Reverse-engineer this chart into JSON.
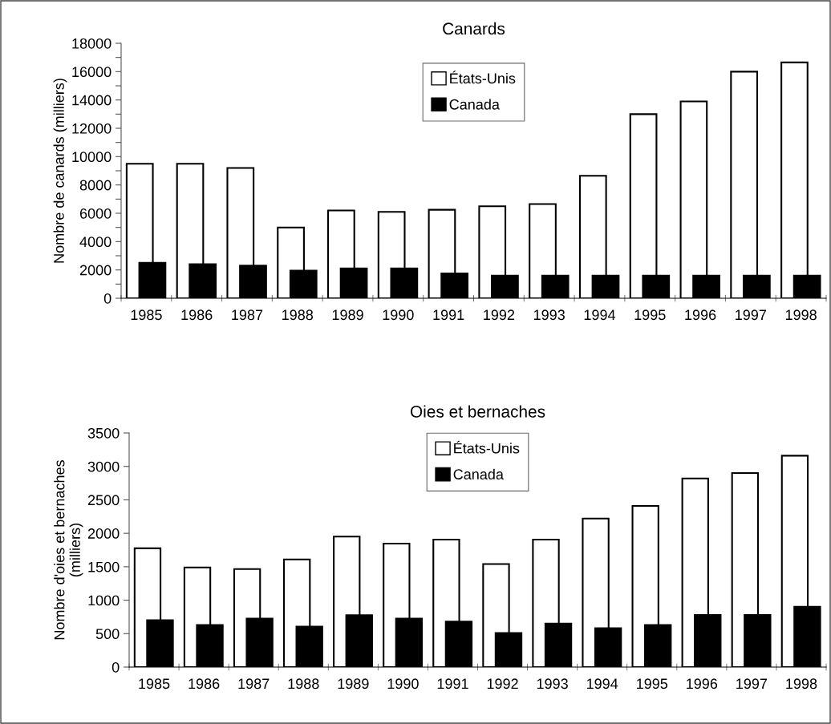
{
  "chart_data": [
    {
      "type": "bar",
      "title": "Canards",
      "ylabel": "Nombre de canards (milliers)",
      "categories": [
        "1985",
        "1986",
        "1987",
        "1988",
        "1989",
        "1990",
        "1991",
        "1992",
        "1993",
        "1994",
        "1995",
        "1996",
        "1997",
        "1998"
      ],
      "series": [
        {
          "name": "États-Unis",
          "color": "#ffffff",
          "values": [
            9500,
            9500,
            9200,
            5000,
            6200,
            6100,
            6250,
            6500,
            6650,
            8650,
            13000,
            13900,
            16000,
            16650
          ]
        },
        {
          "name": "Canada",
          "color": "#000000",
          "values": [
            2500,
            2400,
            2300,
            1950,
            2100,
            2100,
            1750,
            1600,
            1600,
            1600,
            1600,
            1600,
            1600,
            1600
          ]
        }
      ],
      "ylim": [
        0,
        18000
      ],
      "yticks": [
        0,
        {
          "value": 1000,
          "label": null
        },
        2000,
        {
          "value": 3000,
          "label": null
        },
        4000,
        {
          "value": 5000,
          "label": null
        },
        6000,
        {
          "value": 7000,
          "label": null
        },
        8000,
        {
          "value": 9000,
          "label": null
        },
        10000,
        {
          "value": 11000,
          "label": null
        },
        12000,
        {
          "value": 13000,
          "label": null
        },
        14000,
        {
          "value": 15000,
          "label": null
        },
        16000,
        {
          "value": 17000,
          "label": null
        },
        18000
      ],
      "grid": false,
      "legend": "top"
    },
    {
      "type": "bar",
      "title": "Oies et bernaches",
      "ylabel": "Nombre d'oies et bernaches\n(milliers)",
      "categories": [
        "1985",
        "1986",
        "1987",
        "1988",
        "1989",
        "1990",
        "1991",
        "1992",
        "1993",
        "1994",
        "1995",
        "1996",
        "1997",
        "1998"
      ],
      "series": [
        {
          "name": "États-Unis",
          "color": "#ffffff",
          "values": [
            1775,
            1490,
            1465,
            1610,
            1950,
            1845,
            1905,
            1540,
            1905,
            2220,
            2410,
            2820,
            2900,
            3160
          ]
        },
        {
          "name": "Canada",
          "color": "#000000",
          "values": [
            700,
            630,
            725,
            605,
            775,
            725,
            680,
            510,
            650,
            580,
            630,
            780,
            780,
            900
          ]
        }
      ],
      "ylim": [
        0,
        3500
      ],
      "yticks": [
        0,
        500,
        1000,
        1500,
        2000,
        2500,
        3000,
        3500
      ],
      "grid": false,
      "legend": "top"
    }
  ]
}
